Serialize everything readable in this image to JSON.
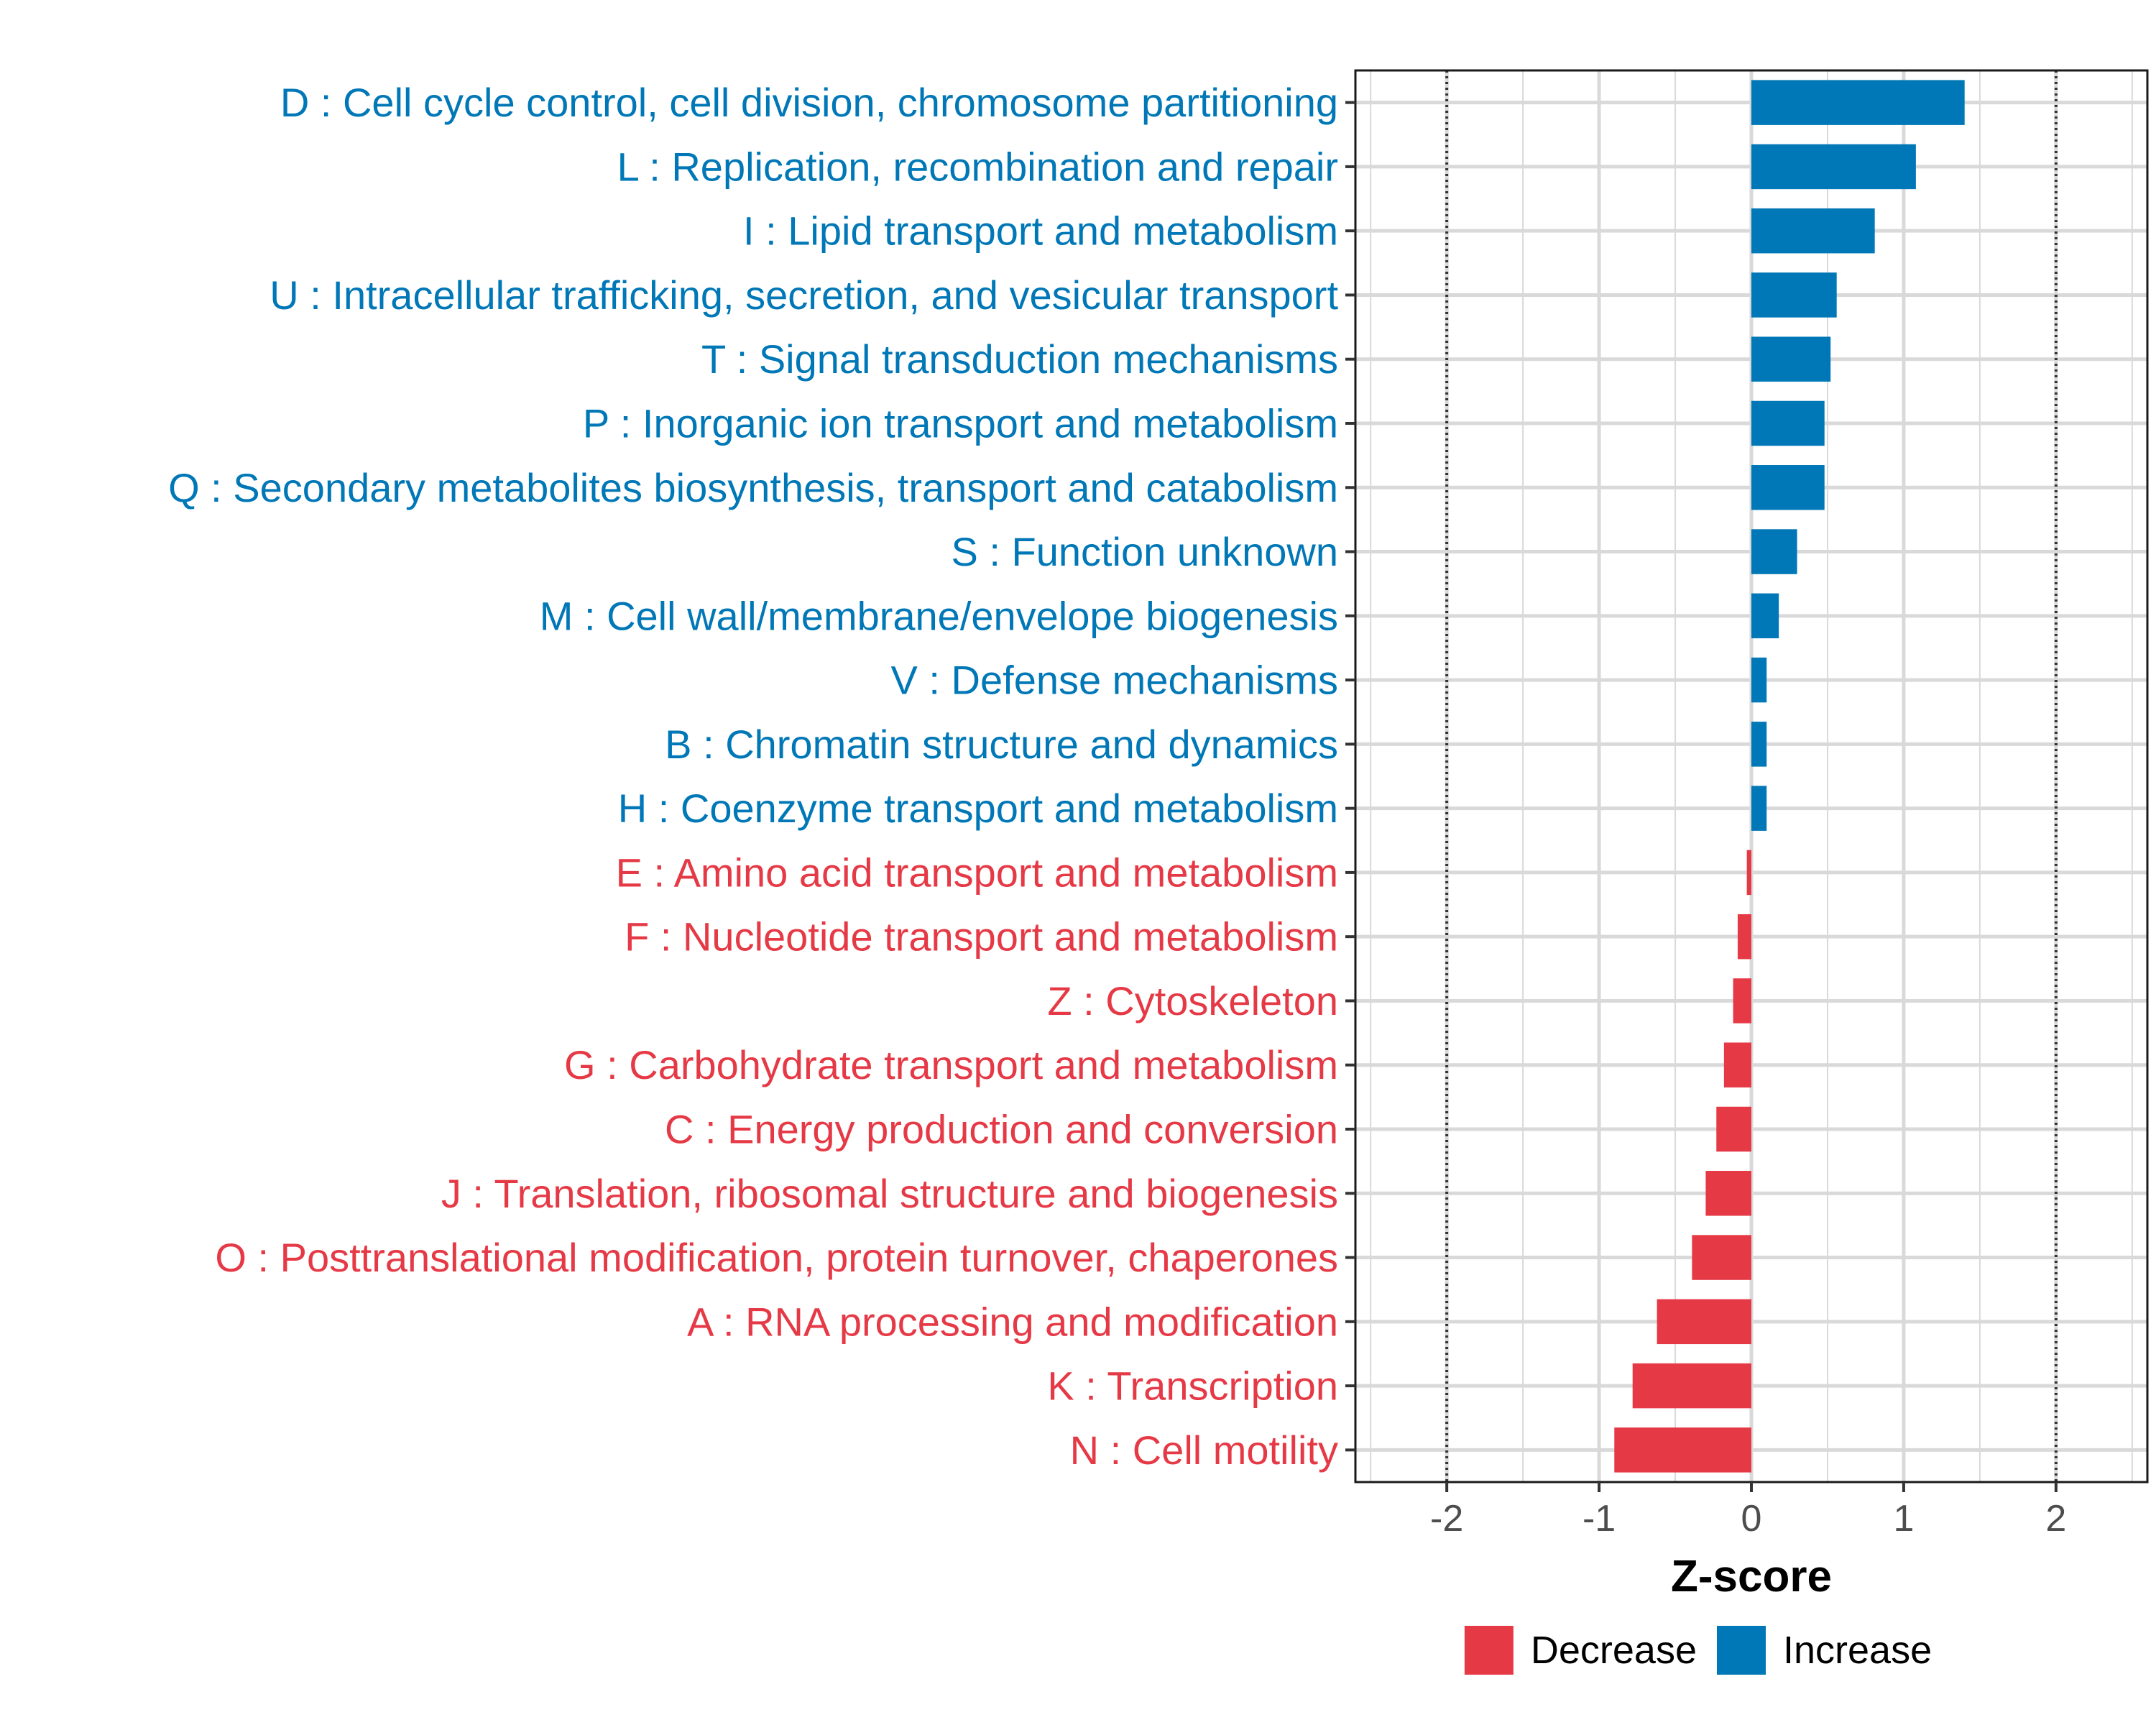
{
  "chart_data": {
    "type": "bar",
    "orientation": "horizontal",
    "xlabel": "Z-score",
    "ylabel": "",
    "xlim": [
      -2.6,
      2.6
    ],
    "xticks": [
      -2,
      -1,
      0,
      1,
      2
    ],
    "xtick_labels": [
      "-2",
      "-1",
      "0",
      "1",
      "2"
    ],
    "reference_lines": [
      -2,
      2
    ],
    "grid": true,
    "colors": {
      "Increase": "#0077b6",
      "Decrease": "#e63946"
    },
    "legend": {
      "position": "bottom",
      "entries": [
        {
          "label": "Decrease",
          "color": "#e63946"
        },
        {
          "label": "Increase",
          "color": "#0077b6"
        }
      ]
    },
    "bars": [
      {
        "label": "D : Cell cycle control, cell division, chromosome partitioning",
        "value": 1.4,
        "group": "Increase"
      },
      {
        "label": "L : Replication, recombination and repair",
        "value": 1.08,
        "group": "Increase"
      },
      {
        "label": "I : Lipid transport and metabolism",
        "value": 0.81,
        "group": "Increase"
      },
      {
        "label": "U : Intracellular trafficking, secretion, and vesicular transport",
        "value": 0.56,
        "group": "Increase"
      },
      {
        "label": "T : Signal transduction mechanisms",
        "value": 0.52,
        "group": "Increase"
      },
      {
        "label": "P : Inorganic ion transport and metabolism",
        "value": 0.48,
        "group": "Increase"
      },
      {
        "label": "Q : Secondary metabolites biosynthesis, transport and catabolism",
        "value": 0.48,
        "group": "Increase"
      },
      {
        "label": "S : Function unknown",
        "value": 0.3,
        "group": "Increase"
      },
      {
        "label": "M : Cell wall/membrane/envelope biogenesis",
        "value": 0.18,
        "group": "Increase"
      },
      {
        "label": "V : Defense mechanisms",
        "value": 0.1,
        "group": "Increase"
      },
      {
        "label": "B : Chromatin structure and dynamics",
        "value": 0.1,
        "group": "Increase"
      },
      {
        "label": "H : Coenzyme transport and metabolism",
        "value": 0.1,
        "group": "Increase"
      },
      {
        "label": "E : Amino acid transport and metabolism",
        "value": -0.03,
        "group": "Decrease"
      },
      {
        "label": "F : Nucleotide transport and metabolism",
        "value": -0.09,
        "group": "Decrease"
      },
      {
        "label": "Z : Cytoskeleton",
        "value": -0.12,
        "group": "Decrease"
      },
      {
        "label": "G : Carbohydrate transport and metabolism",
        "value": -0.18,
        "group": "Decrease"
      },
      {
        "label": "C : Energy production and conversion",
        "value": -0.23,
        "group": "Decrease"
      },
      {
        "label": "J : Translation, ribosomal structure and biogenesis",
        "value": -0.3,
        "group": "Decrease"
      },
      {
        "label": "O : Posttranslational modification, protein turnover, chaperones",
        "value": -0.39,
        "group": "Decrease"
      },
      {
        "label": "A : RNA processing and modification",
        "value": -0.62,
        "group": "Decrease"
      },
      {
        "label": "K : Transcription",
        "value": -0.78,
        "group": "Decrease"
      },
      {
        "label": "N : Cell motility",
        "value": -0.9,
        "group": "Decrease"
      }
    ]
  }
}
